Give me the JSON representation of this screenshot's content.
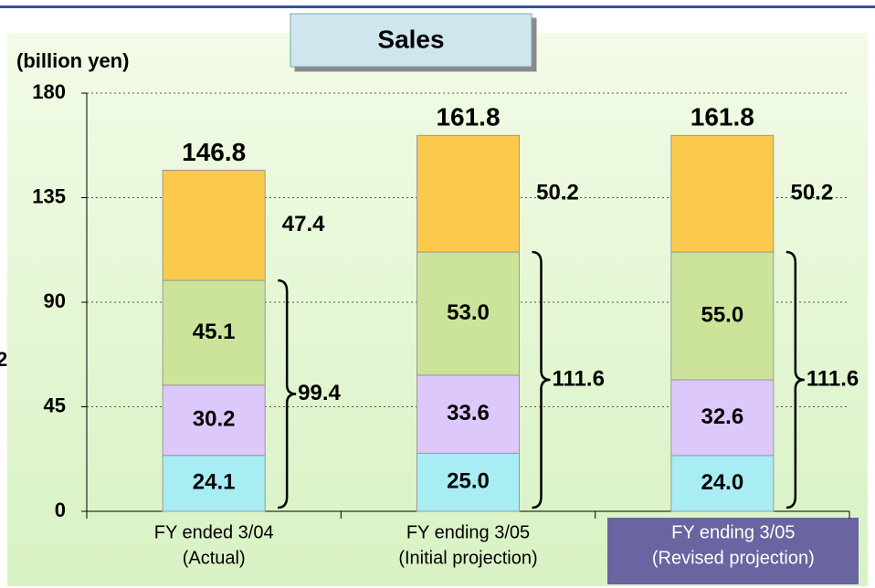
{
  "chart_data": {
    "type": "stacked_bar",
    "title": "Sales",
    "y_axis_label": "(billion yen)",
    "fragment_text": "2",
    "categories": [
      [
        "FY ended 3/04",
        "(Actual)"
      ],
      [
        "FY ending 3/05",
        "(Initial projection)"
      ],
      [
        "FY ending 3/05",
        "(Revised projection)"
      ]
    ],
    "series": [
      {
        "color": "#a8ecf4",
        "values": [
          24.1,
          25.0,
          24.0
        ],
        "value_labels": [
          "24.1",
          "25.0",
          "24.0"
        ]
      },
      {
        "color": "#dcc8fa",
        "values": [
          30.2,
          33.6,
          32.6
        ],
        "value_labels": [
          "30.2",
          "33.6",
          "32.6"
        ]
      },
      {
        "color": "#cce49a",
        "values": [
          45.1,
          53.0,
          55.0
        ],
        "value_labels": [
          "45.1",
          "53.0",
          "55.0"
        ]
      },
      {
        "color": "#fbc94c",
        "values": [
          47.4,
          50.2,
          50.2
        ],
        "value_labels": [
          "47.4",
          "50.2",
          "50.2"
        ]
      }
    ],
    "totals": [
      146.8,
      161.8,
      161.8
    ],
    "subtotals": [
      99.4,
      111.6,
      111.6
    ],
    "ylim": [
      0,
      180
    ],
    "yticks": [
      0,
      45,
      90,
      135,
      180
    ],
    "grid": true
  }
}
